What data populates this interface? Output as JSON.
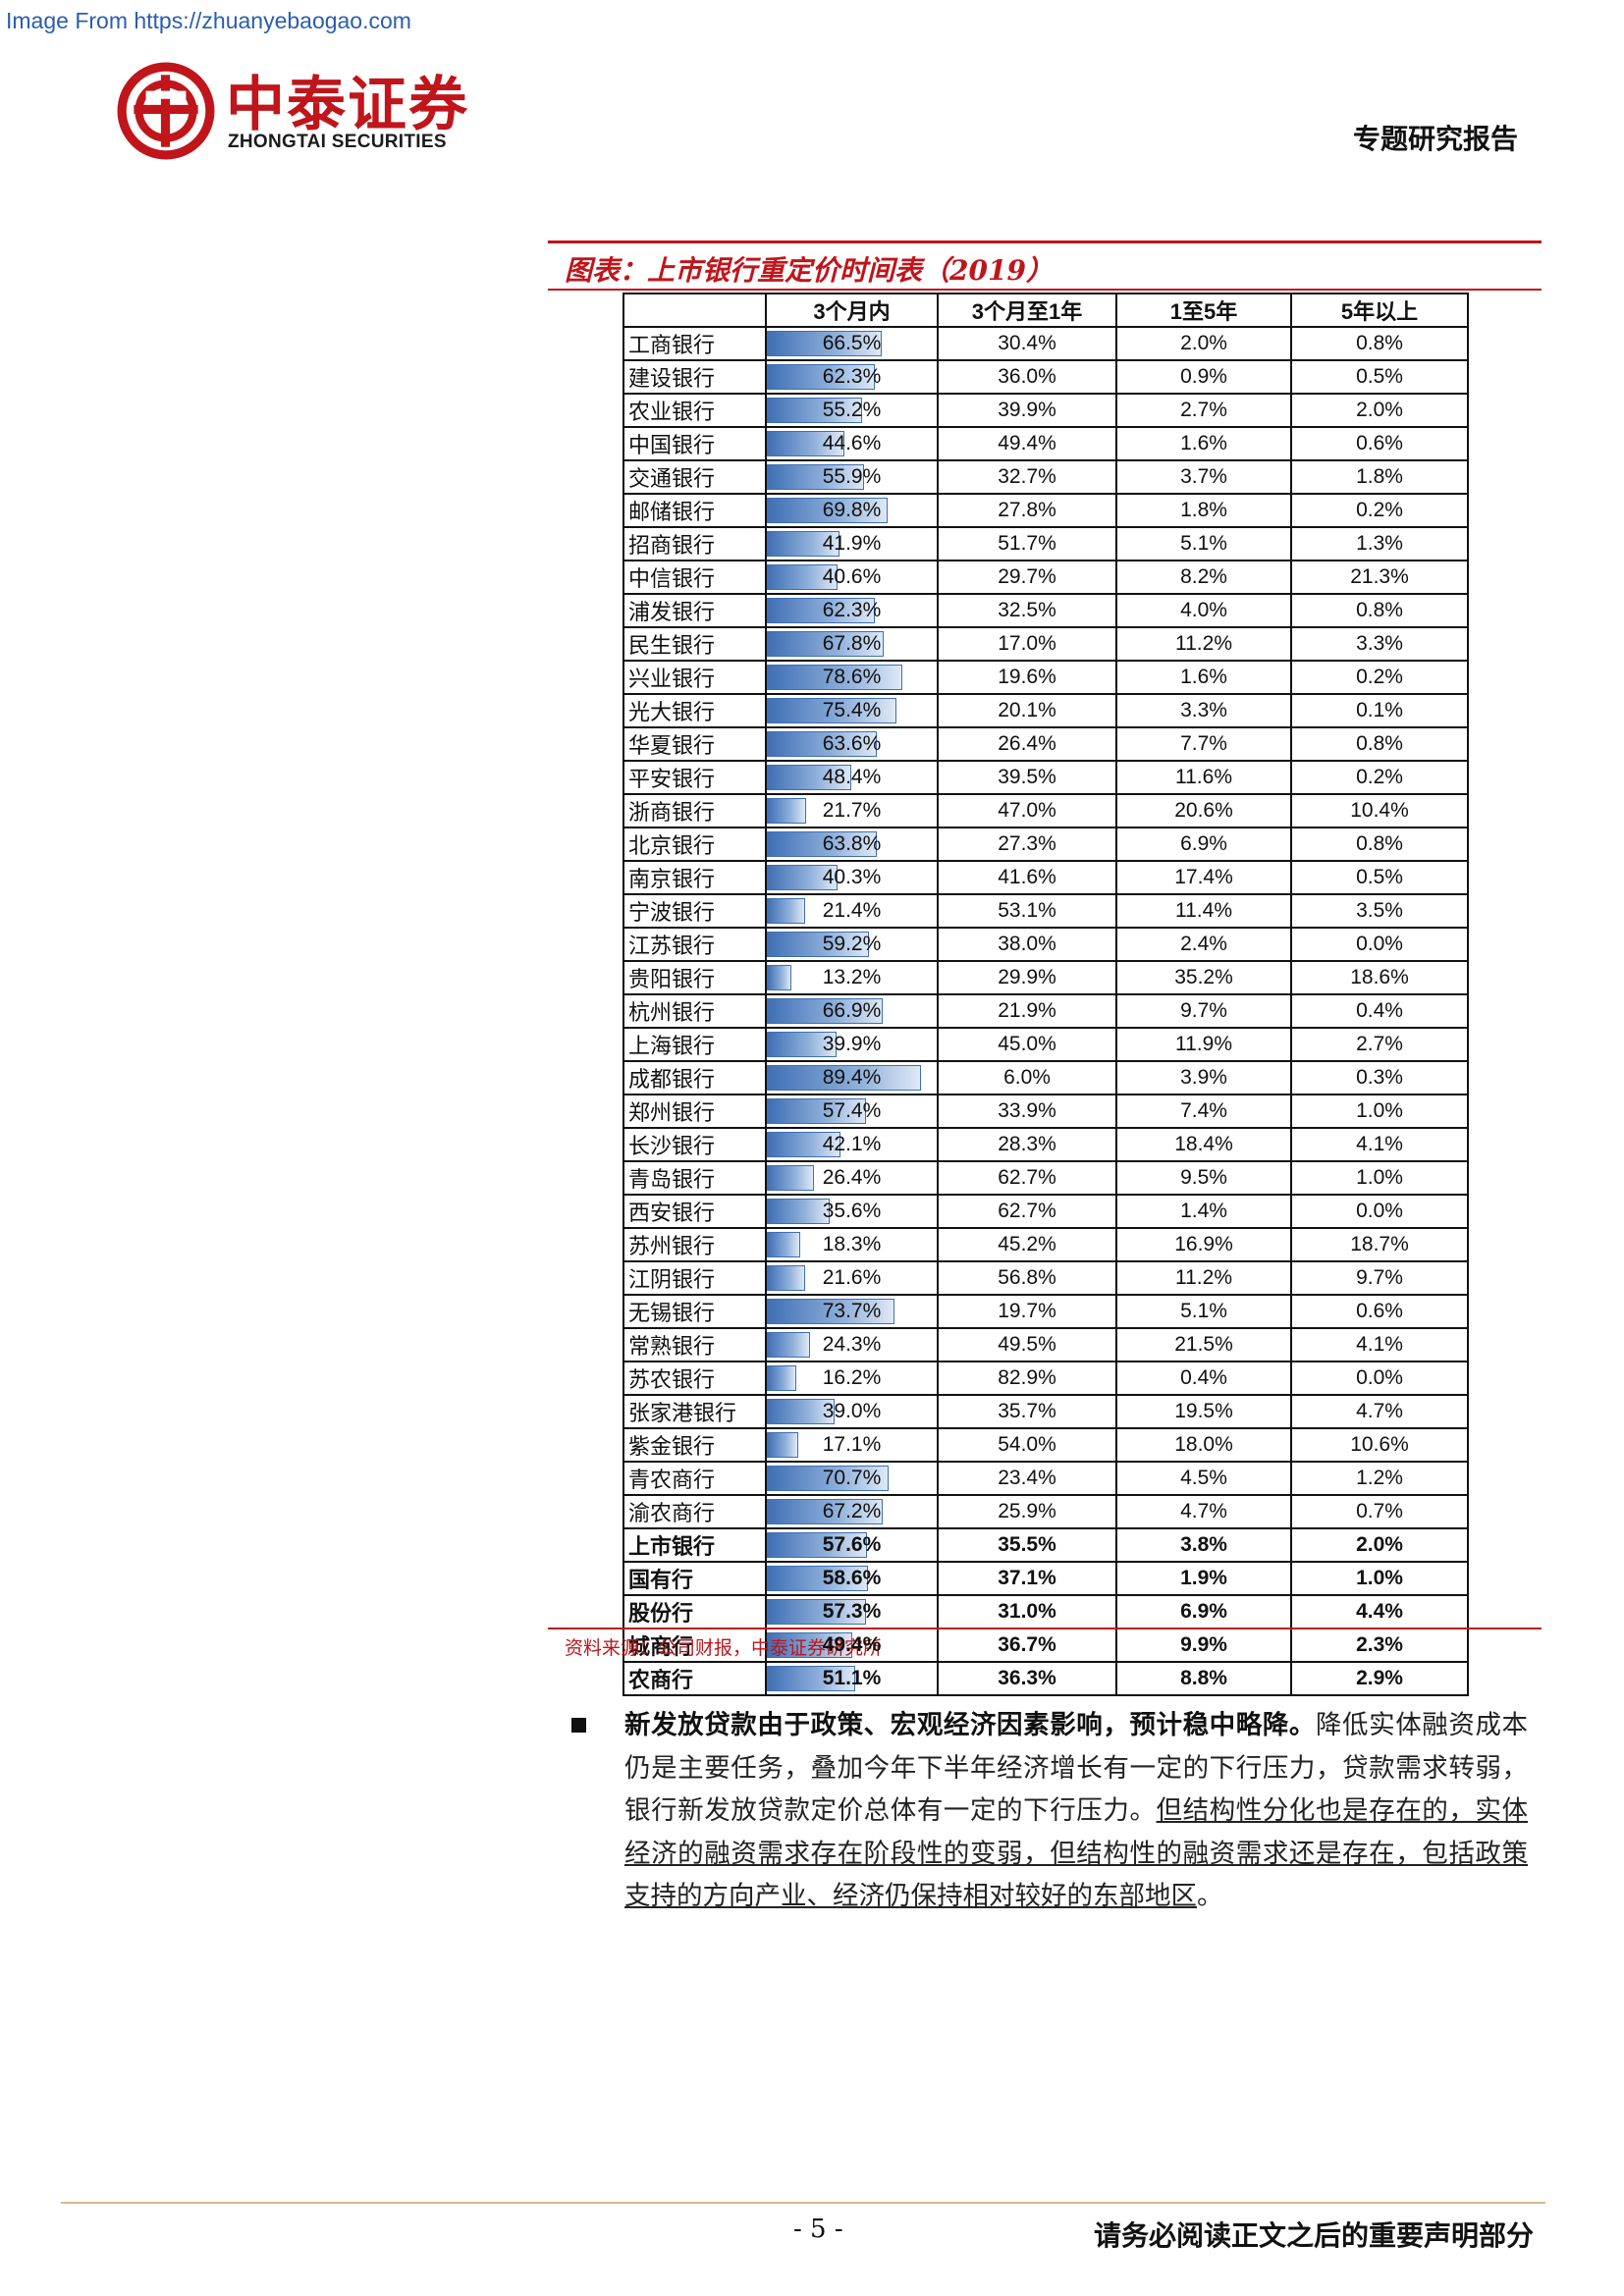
{
  "watermark": "Image From https://zhuanyebaogao.com",
  "header": {
    "logo_zh": "中泰证券",
    "logo_en": "ZHONGTAI SECURITIES",
    "report_type": "专题研究报告"
  },
  "figure": {
    "title": "图表：上市银行重定价时间表（2019）",
    "source": "资料来源：公司财报，中泰证券研究所"
  },
  "chart_data": {
    "type": "table",
    "title": "图表：上市银行重定价时间表（2019）",
    "columns": [
      "",
      "3个月内",
      "3个月至1年",
      "1至5年",
      "5年以上"
    ],
    "rows": [
      {
        "name": "工商银行",
        "values": [
          "66.5%",
          "30.4%",
          "2.0%",
          "0.8%"
        ],
        "bar": 66.5
      },
      {
        "name": "建设银行",
        "values": [
          "62.3%",
          "36.0%",
          "0.9%",
          "0.5%"
        ],
        "bar": 62.3
      },
      {
        "name": "农业银行",
        "values": [
          "55.2%",
          "39.9%",
          "2.7%",
          "2.0%"
        ],
        "bar": 55.2
      },
      {
        "name": "中国银行",
        "values": [
          "44.6%",
          "49.4%",
          "1.6%",
          "0.6%"
        ],
        "bar": 44.6
      },
      {
        "name": "交通银行",
        "values": [
          "55.9%",
          "32.7%",
          "3.7%",
          "1.8%"
        ],
        "bar": 55.9
      },
      {
        "name": "邮储银行",
        "values": [
          "69.8%",
          "27.8%",
          "1.8%",
          "0.2%"
        ],
        "bar": 69.8
      },
      {
        "name": "招商银行",
        "values": [
          "41.9%",
          "51.7%",
          "5.1%",
          "1.3%"
        ],
        "bar": 41.9
      },
      {
        "name": "中信银行",
        "values": [
          "40.6%",
          "29.7%",
          "8.2%",
          "21.3%"
        ],
        "bar": 40.6
      },
      {
        "name": "浦发银行",
        "values": [
          "62.3%",
          "32.5%",
          "4.0%",
          "0.8%"
        ],
        "bar": 62.3
      },
      {
        "name": "民生银行",
        "values": [
          "67.8%",
          "17.0%",
          "11.2%",
          "3.3%"
        ],
        "bar": 67.8
      },
      {
        "name": "兴业银行",
        "values": [
          "78.6%",
          "19.6%",
          "1.6%",
          "0.2%"
        ],
        "bar": 78.6
      },
      {
        "name": "光大银行",
        "values": [
          "75.4%",
          "20.1%",
          "3.3%",
          "0.1%"
        ],
        "bar": 75.4
      },
      {
        "name": "华夏银行",
        "values": [
          "63.6%",
          "26.4%",
          "7.7%",
          "0.8%"
        ],
        "bar": 63.6
      },
      {
        "name": "平安银行",
        "values": [
          "48.4%",
          "39.5%",
          "11.6%",
          "0.2%"
        ],
        "bar": 48.4
      },
      {
        "name": "浙商银行",
        "values": [
          "21.7%",
          "47.0%",
          "20.6%",
          "10.4%"
        ],
        "bar": 21.7
      },
      {
        "name": "北京银行",
        "values": [
          "63.8%",
          "27.3%",
          "6.9%",
          "0.8%"
        ],
        "bar": 63.8
      },
      {
        "name": "南京银行",
        "values": [
          "40.3%",
          "41.6%",
          "17.4%",
          "0.5%"
        ],
        "bar": 40.3
      },
      {
        "name": "宁波银行",
        "values": [
          "21.4%",
          "53.1%",
          "11.4%",
          "3.5%"
        ],
        "bar": 21.4
      },
      {
        "name": "江苏银行",
        "values": [
          "59.2%",
          "38.0%",
          "2.4%",
          "0.0%"
        ],
        "bar": 59.2
      },
      {
        "name": "贵阳银行",
        "values": [
          "13.2%",
          "29.9%",
          "35.2%",
          "18.6%"
        ],
        "bar": 13.2
      },
      {
        "name": "杭州银行",
        "values": [
          "66.9%",
          "21.9%",
          "9.7%",
          "0.4%"
        ],
        "bar": 66.9
      },
      {
        "name": "上海银行",
        "values": [
          "39.9%",
          "45.0%",
          "11.9%",
          "2.7%"
        ],
        "bar": 39.9
      },
      {
        "name": "成都银行",
        "values": [
          "89.4%",
          "6.0%",
          "3.9%",
          "0.3%"
        ],
        "bar": 89.4
      },
      {
        "name": "郑州银行",
        "values": [
          "57.4%",
          "33.9%",
          "7.4%",
          "1.0%"
        ],
        "bar": 57.4
      },
      {
        "name": "长沙银行",
        "values": [
          "42.1%",
          "28.3%",
          "18.4%",
          "4.1%"
        ],
        "bar": 42.1
      },
      {
        "name": "青岛银行",
        "values": [
          "26.4%",
          "62.7%",
          "9.5%",
          "1.0%"
        ],
        "bar": 26.4
      },
      {
        "name": "西安银行",
        "values": [
          "35.6%",
          "62.7%",
          "1.4%",
          "0.0%"
        ],
        "bar": 35.6
      },
      {
        "name": "苏州银行",
        "values": [
          "18.3%",
          "45.2%",
          "16.9%",
          "18.7%"
        ],
        "bar": 18.3
      },
      {
        "name": "江阴银行",
        "values": [
          "21.6%",
          "56.8%",
          "11.2%",
          "9.7%"
        ],
        "bar": 21.6
      },
      {
        "name": "无锡银行",
        "values": [
          "73.7%",
          "19.7%",
          "5.1%",
          "0.6%"
        ],
        "bar": 73.7
      },
      {
        "name": "常熟银行",
        "values": [
          "24.3%",
          "49.5%",
          "21.5%",
          "4.1%"
        ],
        "bar": 24.3
      },
      {
        "name": "苏农银行",
        "values": [
          "16.2%",
          "82.9%",
          "0.4%",
          "0.0%"
        ],
        "bar": 16.2
      },
      {
        "name": "张家港银行",
        "values": [
          "39.0%",
          "35.7%",
          "19.5%",
          "4.7%"
        ],
        "bar": 39.0
      },
      {
        "name": "紫金银行",
        "values": [
          "17.1%",
          "54.0%",
          "18.0%",
          "10.6%"
        ],
        "bar": 17.1
      },
      {
        "name": "青农商行",
        "values": [
          "70.7%",
          "23.4%",
          "4.5%",
          "1.2%"
        ],
        "bar": 70.7
      },
      {
        "name": "渝农商行",
        "values": [
          "67.2%",
          "25.9%",
          "4.7%",
          "0.7%"
        ],
        "bar": 67.2
      },
      {
        "name": "上市银行",
        "values": [
          "57.6%",
          "35.5%",
          "3.8%",
          "2.0%"
        ],
        "bar": 57.6,
        "summary": true
      },
      {
        "name": "国有行",
        "values": [
          "58.6%",
          "37.1%",
          "1.9%",
          "1.0%"
        ],
        "bar": 58.6,
        "summary": true
      },
      {
        "name": "股份行",
        "values": [
          "57.3%",
          "31.0%",
          "6.9%",
          "4.4%"
        ],
        "bar": 57.3,
        "summary": true
      },
      {
        "name": "城商行",
        "values": [
          "49.4%",
          "36.7%",
          "9.9%",
          "2.3%"
        ],
        "bar": 49.4,
        "summary": true
      },
      {
        "name": "农商行",
        "values": [
          "51.1%",
          "36.3%",
          "8.8%",
          "2.9%"
        ],
        "bar": 51.1,
        "summary": true
      }
    ]
  },
  "body": {
    "lead": "新发放贷款由于政策、宏观经济因素影响，预计稳中略降。",
    "plain": "降低实体融资成本仍是主要任务，叠加今年下半年经济增长有一定的下行压力，贷款需求转弱，银行新发放贷款定价总体有一定的下行压力。",
    "underlined": "但结构性分化也是存在的，实体经济的融资需求存在阶段性的变弱，但结构性的融资需求还是存在，包括政策支持的方向产业、经济仍保持相对较好的东部地区",
    "end": "。"
  },
  "footer": {
    "page_number": "- 5 -",
    "disclaimer": "请务必阅读正文之后的重要声明部分"
  },
  "colors": {
    "brand_red": "#c0151b",
    "bar_blue": "#3f6fb5",
    "footer_rule": "#d9b98c"
  }
}
